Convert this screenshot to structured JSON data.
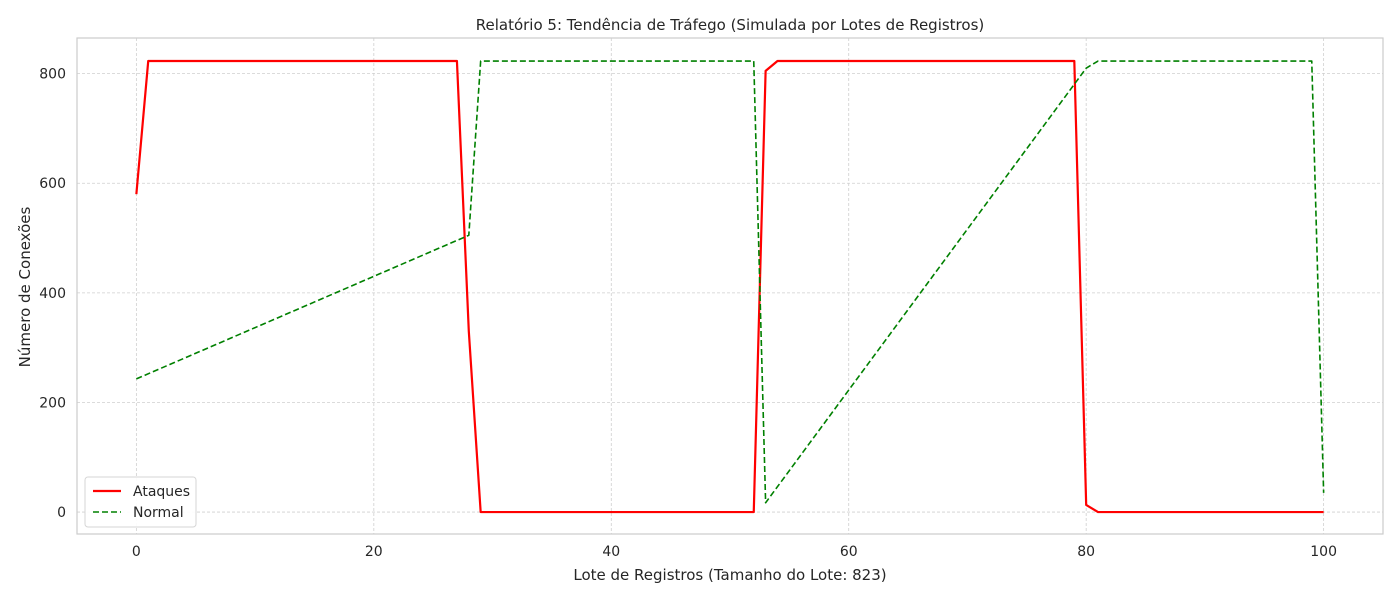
{
  "chart_data": {
    "type": "line",
    "title": "Relatório 5: Tendência de Tráfego (Simulada por Lotes de Registros)",
    "xlabel": "Lote de Registros (Tamanho do Lote: 823)",
    "ylabel": "Número de Conexões",
    "xlim": [
      -5,
      105
    ],
    "ylim": [
      -40,
      865
    ],
    "xticks": [
      0,
      20,
      40,
      60,
      80,
      100
    ],
    "yticks": [
      0,
      200,
      400,
      600,
      800
    ],
    "grid": true,
    "legend_position": "lower-left",
    "series": [
      {
        "name": "Ataques",
        "color": "#ff0000",
        "style": "solid",
        "points": [
          [
            0,
            580
          ],
          [
            1,
            823
          ],
          [
            27,
            823
          ],
          [
            28,
            330
          ],
          [
            29,
            0
          ],
          [
            52,
            0
          ],
          [
            53,
            805
          ],
          [
            54,
            823
          ],
          [
            79,
            823
          ],
          [
            80,
            13
          ],
          [
            81,
            0
          ],
          [
            100,
            0
          ]
        ]
      },
      {
        "name": "Normal",
        "color": "#008000",
        "style": "dashed",
        "points": [
          [
            0,
            243
          ],
          [
            28,
            505
          ],
          [
            29,
            823
          ],
          [
            52,
            823
          ],
          [
            53,
            17
          ],
          [
            80,
            810
          ],
          [
            81,
            823
          ],
          [
            99,
            823
          ],
          [
            100,
            35
          ]
        ]
      }
    ]
  }
}
